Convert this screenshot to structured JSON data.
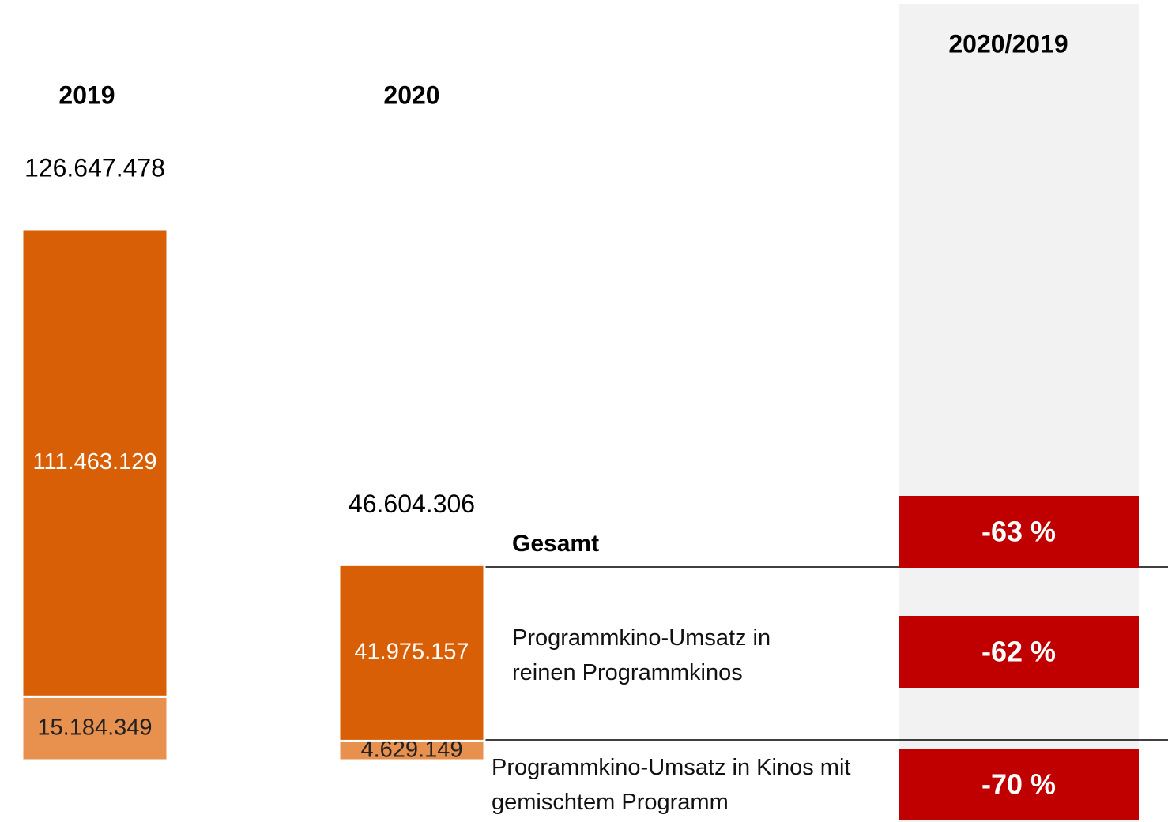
{
  "chart_data": {
    "type": "bar",
    "stacked": true,
    "categories": [
      "2019",
      "2020"
    ],
    "series": [
      {
        "name": "Programmkino-Umsatz in Kinos mit gemischtem Programm",
        "color": "#e8914f",
        "values": [
          15184349,
          4629149
        ],
        "value_labels": [
          "15.184.349",
          "4.629.149"
        ]
      },
      {
        "name": "Programmkino-Umsatz in reinen Programmkinos",
        "color": "#d95f07",
        "values": [
          111463129,
          41975157
        ],
        "value_labels": [
          "111.463.129",
          "41.975.157"
        ]
      }
    ],
    "totals": [
      126647478,
      46604306
    ],
    "total_labels": [
      "126.647.478",
      "46.604.306"
    ],
    "total_name": "Gesamt",
    "change": {
      "title": "2020/2019",
      "color": "#c00000",
      "values": [
        -63,
        -62,
        -70
      ],
      "value_labels": [
        "-63 %",
        "-62 %",
        "-70 %"
      ]
    }
  }
}
